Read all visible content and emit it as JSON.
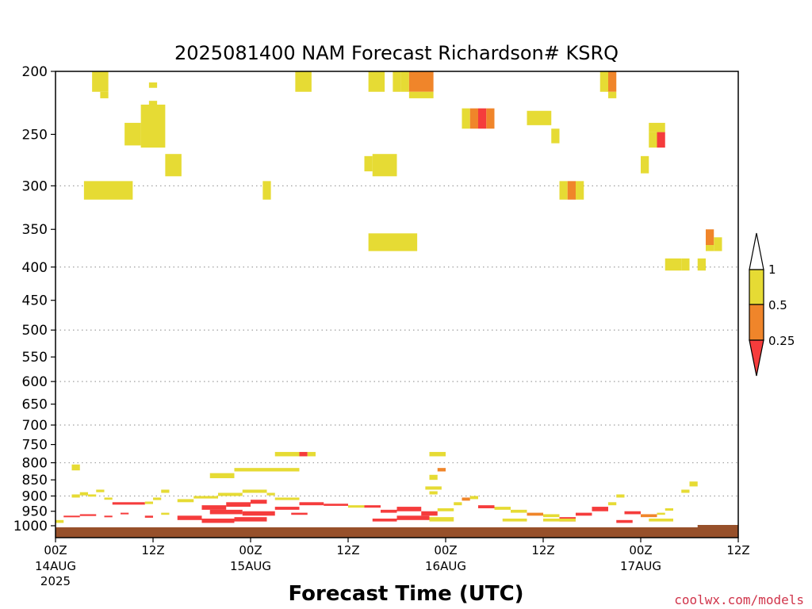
{
  "chart_data": {
    "type": "heatmap",
    "title": "2025081400 NAM Forecast Richardson# KSRQ",
    "xlabel": "Forecast Time (UTC)",
    "ylabel": "",
    "y_scale": "log",
    "y_reversed": true,
    "ylim": [
      1000,
      200
    ],
    "xlim": [
      0,
      84
    ],
    "y_ticks": [
      200,
      250,
      300,
      350,
      400,
      450,
      500,
      550,
      600,
      650,
      700,
      750,
      800,
      850,
      900,
      950,
      1000
    ],
    "y_gridlines": [
      300,
      400,
      500,
      600,
      700,
      800,
      900
    ],
    "x_ticks": [
      {
        "hour": 0,
        "label": "00Z",
        "sublabel": "14AUG",
        "sublabel2": "2025"
      },
      {
        "hour": 12,
        "label": "12Z",
        "sublabel": "",
        "sublabel2": ""
      },
      {
        "hour": 24,
        "label": "00Z",
        "sublabel": "15AUG",
        "sublabel2": ""
      },
      {
        "hour": 36,
        "label": "12Z",
        "sublabel": "",
        "sublabel2": ""
      },
      {
        "hour": 48,
        "label": "00Z",
        "sublabel": "16AUG",
        "sublabel2": ""
      },
      {
        "hour": 60,
        "label": "12Z",
        "sublabel": "",
        "sublabel2": ""
      },
      {
        "hour": 72,
        "label": "00Z",
        "sublabel": "17AUG",
        "sublabel2": ""
      },
      {
        "hour": 84,
        "label": "12Z",
        "sublabel": "",
        "sublabel2": ""
      }
    ],
    "colorbar": {
      "levels": [
        "1",
        "0.5",
        "0.25"
      ],
      "colors": {
        "lt_1": "#e6db34",
        "lt_0.5": "#f0852a",
        "lt_0.25": "#f53c3c"
      }
    },
    "cells": [
      [
        4.5,
        6.5,
        200,
        215,
        "y"
      ],
      [
        5.5,
        6.5,
        215,
        220,
        "y"
      ],
      [
        11.5,
        12.5,
        208,
        212,
        "y"
      ],
      [
        11.5,
        12.5,
        222,
        235,
        "y"
      ],
      [
        8.5,
        10.5,
        240,
        260,
        "y"
      ],
      [
        10.5,
        13.5,
        225,
        262,
        "y"
      ],
      [
        13.5,
        15.5,
        268,
        290,
        "y"
      ],
      [
        3.5,
        9.5,
        295,
        315,
        "y"
      ],
      [
        25.5,
        26.5,
        295,
        315,
        "y"
      ],
      [
        29.5,
        31.5,
        200,
        215,
        "y"
      ],
      [
        38,
        39,
        270,
        285,
        "y"
      ],
      [
        39,
        42,
        268,
        290,
        "y"
      ],
      [
        38.5,
        40.5,
        200,
        215,
        "y"
      ],
      [
        41.5,
        42.5,
        200,
        215,
        "y"
      ],
      [
        42.5,
        43.5,
        200,
        215,
        "y"
      ],
      [
        43.5,
        46.5,
        200,
        215,
        "o"
      ],
      [
        43.5,
        46.5,
        215,
        220,
        "y"
      ],
      [
        50,
        51,
        228,
        245,
        "y"
      ],
      [
        51,
        52,
        228,
        245,
        "o"
      ],
      [
        52,
        53,
        228,
        245,
        "r"
      ],
      [
        53,
        54,
        228,
        245,
        "o"
      ],
      [
        58,
        61,
        230,
        242,
        "y"
      ],
      [
        61,
        62,
        245,
        258,
        "y"
      ],
      [
        62,
        63,
        295,
        315,
        "y"
      ],
      [
        63,
        64,
        295,
        315,
        "o"
      ],
      [
        64,
        65,
        295,
        315,
        "y"
      ],
      [
        67,
        68,
        200,
        215,
        "y"
      ],
      [
        68,
        69,
        200,
        215,
        "o"
      ],
      [
        68,
        69,
        215,
        220,
        "y"
      ],
      [
        72,
        73,
        270,
        287,
        "y"
      ],
      [
        73,
        74,
        248,
        262,
        "y"
      ],
      [
        74,
        75,
        248,
        262,
        "r"
      ],
      [
        73,
        75,
        240,
        248,
        "y"
      ],
      [
        38.5,
        44.5,
        355,
        378,
        "y"
      ],
      [
        75,
        77,
        388,
        405,
        "y"
      ],
      [
        77,
        78,
        388,
        405,
        "y"
      ],
      [
        79,
        80,
        388,
        405,
        "y"
      ],
      [
        80,
        81,
        350,
        370,
        "o"
      ],
      [
        80,
        81,
        370,
        378,
        "y"
      ],
      [
        81,
        82,
        360,
        378,
        "y"
      ],
      [
        84,
        85,
        388,
        405,
        "y"
      ],
      [
        2,
        3,
        805,
        822,
        "y"
      ],
      [
        27,
        30,
        770,
        782,
        "y"
      ],
      [
        30,
        31,
        770,
        782,
        "r"
      ],
      [
        31,
        32,
        770,
        782,
        "y"
      ],
      [
        46,
        48,
        770,
        782,
        "y"
      ],
      [
        19,
        22,
        830,
        845,
        "y"
      ],
      [
        22,
        30,
        815,
        825,
        "y"
      ],
      [
        46,
        47,
        835,
        850,
        "y"
      ],
      [
        47,
        48,
        815,
        825,
        "o"
      ],
      [
        45.5,
        47.5,
        870,
        880,
        "y"
      ],
      [
        46,
        47,
        885,
        895,
        "y"
      ],
      [
        78,
        79,
        855,
        870,
        "y"
      ],
      [
        77,
        78,
        880,
        890,
        "y"
      ],
      [
        2,
        3,
        895,
        905,
        "y"
      ],
      [
        3,
        4,
        888,
        898,
        "y"
      ],
      [
        4,
        5,
        895,
        902,
        "y"
      ],
      [
        5,
        6,
        880,
        888,
        "y"
      ],
      [
        6,
        7,
        905,
        912,
        "y"
      ],
      [
        7,
        11,
        920,
        928,
        "r"
      ],
      [
        11,
        12,
        918,
        926,
        "y"
      ],
      [
        12,
        13,
        905,
        913,
        "y"
      ],
      [
        13,
        14,
        880,
        890,
        "y"
      ],
      [
        15,
        17,
        910,
        920,
        "y"
      ],
      [
        17,
        20,
        900,
        908,
        "y"
      ],
      [
        20,
        23,
        890,
        900,
        "y"
      ],
      [
        23,
        26,
        880,
        890,
        "y"
      ],
      [
        26,
        27,
        890,
        898,
        "y"
      ],
      [
        27,
        30,
        905,
        913,
        "y"
      ],
      [
        18,
        21,
        930,
        945,
        "r"
      ],
      [
        21,
        24,
        920,
        935,
        "r"
      ],
      [
        24,
        26,
        912,
        925,
        "r"
      ],
      [
        19,
        23,
        945,
        960,
        "r"
      ],
      [
        23,
        27,
        950,
        965,
        "r"
      ],
      [
        27,
        30,
        935,
        945,
        "r"
      ],
      [
        30,
        33,
        920,
        930,
        "r"
      ],
      [
        33,
        36,
        925,
        932,
        "r"
      ],
      [
        36,
        38,
        930,
        938,
        "y"
      ],
      [
        38,
        40,
        930,
        938,
        "r"
      ],
      [
        40,
        42,
        945,
        955,
        "r"
      ],
      [
        42,
        45,
        935,
        950,
        "r"
      ],
      [
        45,
        47,
        950,
        965,
        "r"
      ],
      [
        47,
        49,
        940,
        950,
        "y"
      ],
      [
        49,
        50,
        920,
        930,
        "y"
      ],
      [
        50,
        51,
        905,
        915,
        "o"
      ],
      [
        51,
        52,
        900,
        910,
        "y"
      ],
      [
        52,
        54,
        930,
        940,
        "r"
      ],
      [
        54,
        56,
        935,
        945,
        "y"
      ],
      [
        56,
        58,
        945,
        955,
        "y"
      ],
      [
        58,
        60,
        955,
        965,
        "o"
      ],
      [
        60,
        62,
        960,
        970,
        "y"
      ],
      [
        62,
        64,
        970,
        985,
        "r"
      ],
      [
        64,
        66,
        955,
        965,
        "r"
      ],
      [
        66,
        68,
        935,
        950,
        "r"
      ],
      [
        68,
        69,
        920,
        930,
        "y"
      ],
      [
        69,
        70,
        895,
        905,
        "y"
      ],
      [
        70,
        72,
        950,
        960,
        "r"
      ],
      [
        72,
        74,
        960,
        970,
        "o"
      ],
      [
        74,
        75,
        955,
        962,
        "y"
      ],
      [
        75,
        76,
        940,
        948,
        "y"
      ],
      [
        15,
        18,
        965,
        980,
        "r"
      ],
      [
        18,
        22,
        975,
        990,
        "r"
      ],
      [
        22,
        26,
        970,
        985,
        "r"
      ],
      [
        1,
        3,
        965,
        970,
        "r"
      ],
      [
        3,
        5,
        960,
        966,
        "r"
      ],
      [
        6,
        7,
        965,
        970,
        "r"
      ],
      [
        8,
        9,
        955,
        960,
        "r"
      ],
      [
        11,
        12,
        965,
        972,
        "r"
      ],
      [
        13,
        14,
        955,
        962,
        "y"
      ],
      [
        29,
        31,
        955,
        962,
        "r"
      ],
      [
        39,
        42,
        975,
        985,
        "r"
      ],
      [
        42,
        46,
        965,
        980,
        "r"
      ],
      [
        46,
        49,
        970,
        985,
        "y"
      ],
      [
        55,
        58,
        975,
        985,
        "y"
      ],
      [
        60,
        64,
        975,
        985,
        "y"
      ],
      [
        69,
        71,
        980,
        990,
        "r"
      ],
      [
        73,
        76,
        975,
        985,
        "y"
      ],
      [
        0,
        1,
        980,
        990,
        "y"
      ]
    ]
  },
  "credit": "coolwx.com/models"
}
